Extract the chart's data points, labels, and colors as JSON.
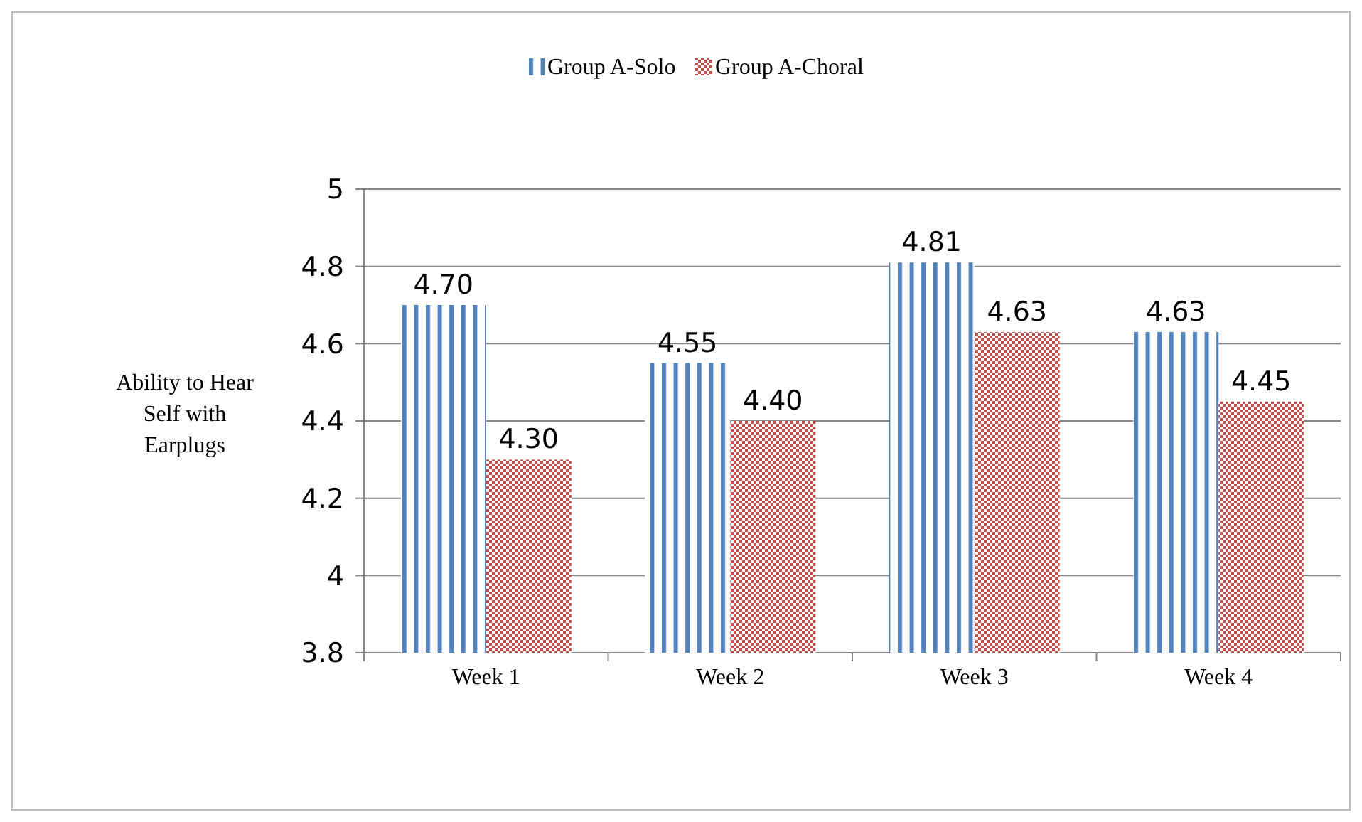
{
  "chart_data": {
    "type": "bar",
    "ylabel": "Ability to Hear Self with Earplugs",
    "categories": [
      "Week 1",
      "Week 2",
      "Week 3",
      "Week 4"
    ],
    "series": [
      {
        "name": "Group A-Solo",
        "color": "#4f81bd",
        "values": [
          4.7,
          4.55,
          4.81,
          4.63
        ],
        "value_labels": [
          "4.70",
          "4.55",
          "4.81",
          "4.63"
        ]
      },
      {
        "name": "Group A-Choral",
        "color": "#c0504d",
        "values": [
          4.3,
          4.4,
          4.63,
          4.45
        ],
        "value_labels": [
          "4.30",
          "4.40",
          "4.63",
          "4.45"
        ]
      }
    ],
    "ylim": [
      3.8,
      5
    ],
    "yticks": [
      3.8,
      4,
      4.2,
      4.4,
      4.6,
      4.8,
      5
    ],
    "grid": "y",
    "legend": "top"
  }
}
